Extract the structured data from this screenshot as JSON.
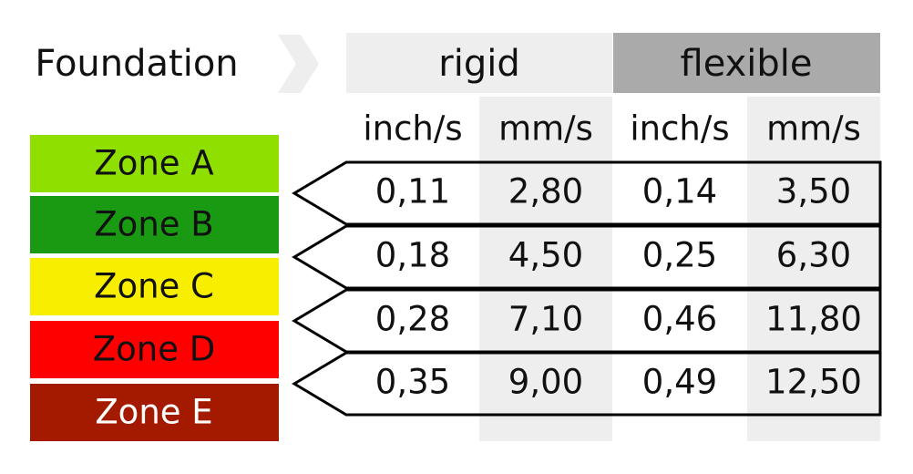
{
  "header": {
    "title": "Foundation",
    "groups": [
      "rigid",
      "flexible"
    ]
  },
  "units": [
    "inch/s",
    "mm/s",
    "inch/s",
    "mm/s"
  ],
  "zones": [
    "Zone A",
    "Zone B",
    "Zone C",
    "Zone D",
    "Zone E"
  ],
  "table": {
    "rows": [
      [
        "0,11",
        "2,80",
        "0,14",
        "3,50"
      ],
      [
        "0,18",
        "4,50",
        "0,25",
        "6,30"
      ],
      [
        "0,28",
        "7,10",
        "0,46",
        "11,80"
      ],
      [
        "0,35",
        "9,00",
        "0,49",
        "12,50"
      ]
    ]
  }
}
